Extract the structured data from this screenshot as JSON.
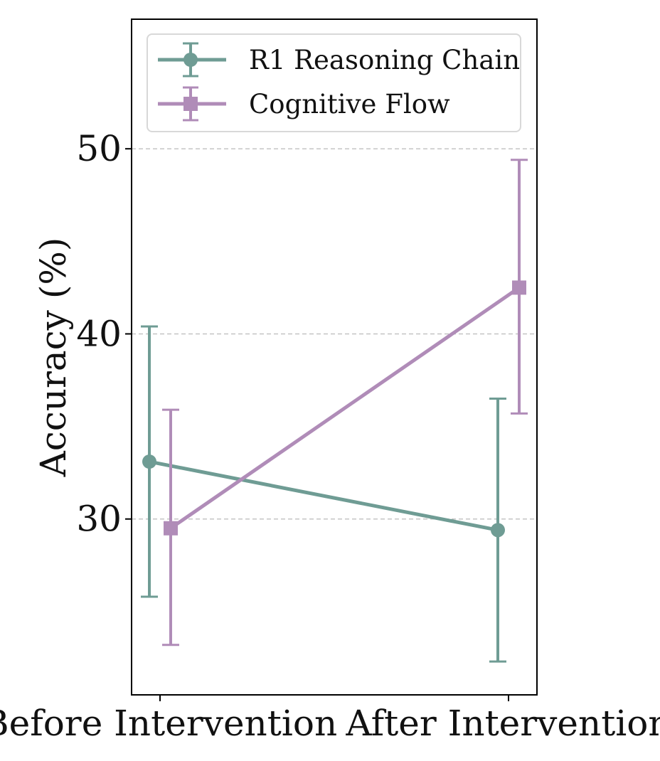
{
  "chart_data": {
    "type": "line",
    "title": "",
    "xlabel": "",
    "ylabel": "Accuracy (%)",
    "categories": [
      "Before Intervention",
      "After Intervention"
    ],
    "yticks": [
      30,
      40,
      50
    ],
    "ylim": [
      20.5,
      57
    ],
    "grid": "horizontal dashed",
    "legend_position": "top",
    "series": [
      {
        "name": "R1 Reasoning Chain",
        "marker": "circle",
        "color": "#6f9c94",
        "values": [
          33.1,
          29.4
        ],
        "err_low": [
          25.8,
          22.3
        ],
        "err_high": [
          40.4,
          36.5
        ]
      },
      {
        "name": "Cognitive Flow",
        "marker": "square",
        "color": "#b08cb8",
        "values": [
          29.5,
          42.5
        ],
        "err_low": [
          23.2,
          35.7
        ],
        "err_high": [
          35.9,
          49.4
        ]
      }
    ]
  }
}
